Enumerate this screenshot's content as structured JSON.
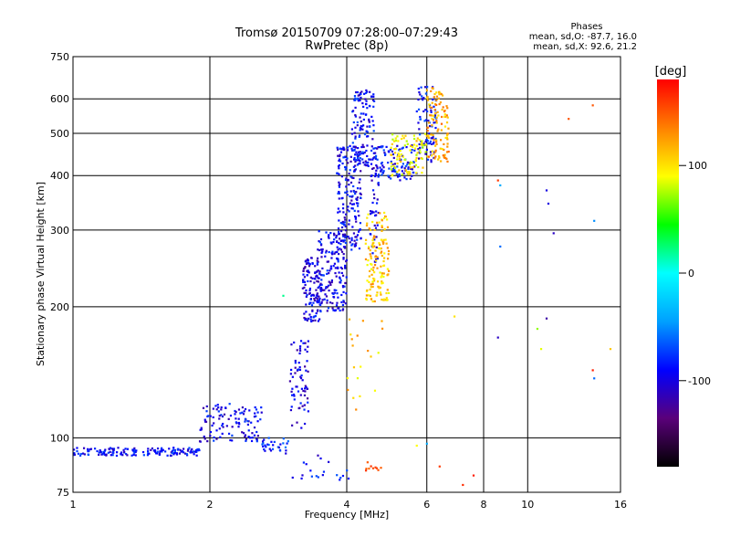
{
  "chart_data": {
    "type": "scatter",
    "title": "Tromsø 20150709 07:28:00–07:29:43",
    "subtitle": "RwPretec (8p)",
    "xlabel": "Frequency [MHz]",
    "ylabel": "Stationary phase Virtual Height [km]",
    "x_scale": "log",
    "y_scale": "log",
    "xlim": [
      1,
      16
    ],
    "ylim": [
      75,
      750
    ],
    "x_ticks": [
      1,
      2,
      4,
      6,
      8,
      10,
      16
    ],
    "y_ticks": [
      75,
      100,
      200,
      300,
      400,
      500,
      600,
      750
    ],
    "grid": true,
    "stats_title": "Phases",
    "stats_o": "mean, sd,O: -87.7, 16.0",
    "stats_x": "mean, sd,X:  92.6, 21.2",
    "colorbar": {
      "label": "[deg]",
      "range": [
        -180,
        180
      ],
      "ticks": [
        -100,
        0,
        100
      ],
      "colors": [
        "#000000",
        "#5a007a",
        "#0000ff",
        "#00a0ff",
        "#00ffff",
        "#00ff00",
        "#ffff00",
        "#ff8000",
        "#ff0000"
      ]
    },
    "series": [
      {
        "clusters": [
          {
            "x": [
              1.0,
              1.9
            ],
            "y": [
              91,
              95
            ],
            "phase": -90,
            "n": 160
          },
          {
            "x": [
              1.9,
              2.6
            ],
            "y": [
              98,
              120
            ],
            "phase": -95,
            "n": 110
          },
          {
            "x": [
              2.6,
              3.0
            ],
            "y": [
              92,
              100
            ],
            "phase": -80,
            "n": 30
          },
          {
            "x": [
              3.0,
              3.3
            ],
            "y": [
              105,
              170
            ],
            "phase": -100,
            "n": 70
          },
          {
            "x": [
              3.2,
              3.5
            ],
            "y": [
              185,
              260
            ],
            "phase": -100,
            "n": 120
          },
          {
            "x": [
              3.45,
              4.0
            ],
            "y": [
              195,
              300
            ],
            "phase": -95,
            "n": 180
          },
          {
            "x": [
              3.8,
              4.3
            ],
            "y": [
              270,
              470
            ],
            "phase": -95,
            "n": 200
          },
          {
            "x": [
              4.1,
              4.6
            ],
            "y": [
              420,
              630
            ],
            "phase": -90,
            "n": 120
          },
          {
            "x": [
              4.6,
              5.7
            ],
            "y": [
              390,
              470
            ],
            "phase": -90,
            "n": 110
          },
          {
            "x": [
              5.7,
              6.3
            ],
            "y": [
              430,
              640
            ],
            "phase": -90,
            "n": 80
          },
          {
            "x": [
              4.5,
              4.7
            ],
            "y": [
              250,
              420
            ],
            "phase": -100,
            "n": 40
          },
          {
            "x": [
              3.0,
              4.1
            ],
            "y": [
              80,
              92
            ],
            "phase": -90,
            "n": 20
          }
        ]
      },
      {
        "clusters": [
          {
            "x": [
              4.4,
              4.95
            ],
            "y": [
              205,
              330
            ],
            "phase": 110,
            "n": 140
          },
          {
            "x": [
              5.0,
              6.0
            ],
            "y": [
              400,
              500
            ],
            "phase": 95,
            "n": 90
          },
          {
            "x": [
              6.0,
              6.7
            ],
            "y": [
              430,
              640
            ],
            "phase": 120,
            "n": 110
          },
          {
            "x": [
              4.0,
              4.8
            ],
            "y": [
              110,
              190
            ],
            "phase": 110,
            "n": 20
          },
          {
            "x": [
              4.4,
              4.8
            ],
            "y": [
              84,
              88
            ],
            "phase": 150,
            "n": 10
          }
        ]
      }
    ],
    "scattered_points": [
      {
        "x": 8.6,
        "y": 390,
        "phase": 160
      },
      {
        "x": 8.7,
        "y": 380,
        "phase": -40
      },
      {
        "x": 8.7,
        "y": 275,
        "phase": -60
      },
      {
        "x": 8.6,
        "y": 170,
        "phase": -110
      },
      {
        "x": 11.0,
        "y": 370,
        "phase": -100
      },
      {
        "x": 11.1,
        "y": 345,
        "phase": -100
      },
      {
        "x": 11.4,
        "y": 295,
        "phase": -110
      },
      {
        "x": 12.3,
        "y": 540,
        "phase": 150
      },
      {
        "x": 13.9,
        "y": 580,
        "phase": 150
      },
      {
        "x": 14.0,
        "y": 315,
        "phase": -50
      },
      {
        "x": 10.5,
        "y": 178,
        "phase": 70
      },
      {
        "x": 10.7,
        "y": 160,
        "phase": 85
      },
      {
        "x": 11.0,
        "y": 188,
        "phase": -120
      },
      {
        "x": 13.9,
        "y": 143,
        "phase": 170
      },
      {
        "x": 14.0,
        "y": 137,
        "phase": -60
      },
      {
        "x": 15.2,
        "y": 160,
        "phase": 110
      },
      {
        "x": 6.9,
        "y": 190,
        "phase": 100
      },
      {
        "x": 5.7,
        "y": 96,
        "phase": 90
      },
      {
        "x": 6.0,
        "y": 97,
        "phase": -40
      },
      {
        "x": 6.4,
        "y": 86,
        "phase": 160
      },
      {
        "x": 7.2,
        "y": 78,
        "phase": 165
      },
      {
        "x": 7.6,
        "y": 82,
        "phase": 170
      },
      {
        "x": 2.9,
        "y": 212,
        "phase": 20
      }
    ]
  }
}
